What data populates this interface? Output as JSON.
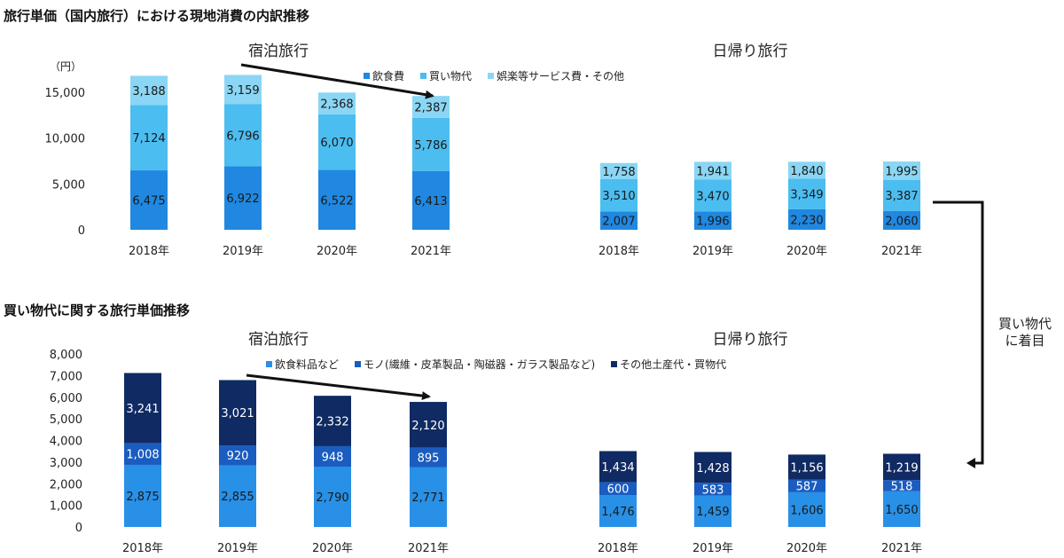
{
  "colors": {
    "food": "#2088e0",
    "shopping": "#4cbdf0",
    "entertainment": "#8ad6f4",
    "food_products": "#2890e6",
    "goods": "#1a5cc0",
    "other_souvenirs": "#102a63",
    "arrow": "#111111"
  },
  "top": {
    "section_title": "旅行単価（国内旅行）における現地消費の内訳推移",
    "unit": "（円）",
    "overnight_title": "宿泊旅行",
    "daytrip_title": "日帰り旅行",
    "legend": [
      "飲食費",
      "買い物代",
      "娯楽等サービス費・その他"
    ]
  },
  "bottom": {
    "section_title": "買い物代に関する旅行単価推移",
    "overnight_title": "宿泊旅行",
    "daytrip_title": "日帰り旅行",
    "legend": [
      "飲食料品など",
      "モノ(繊維・皮革製品・陶磁器・ガラス製品など)",
      "その他土産代・買物代"
    ]
  },
  "side_note": {
    "line1": "買い物代",
    "line2": "に着目"
  },
  "chart_data": [
    {
      "type": "bar",
      "stacked": true,
      "title": "宿泊旅行",
      "categories": [
        "2018年",
        "2019年",
        "2020年",
        "2021年"
      ],
      "series": [
        {
          "name": "飲食費",
          "values": [
            6475,
            6922,
            6522,
            6413
          ]
        },
        {
          "name": "買い物代",
          "values": [
            7124,
            6796,
            6070,
            5786
          ]
        },
        {
          "name": "娯楽等サービス費・その他",
          "values": [
            3188,
            3159,
            2368,
            2387
          ]
        }
      ],
      "labels": [
        [
          "6,475",
          "6,922",
          "6,522",
          "6,413"
        ],
        [
          "7,124",
          "6,796",
          "6,070",
          "5,786"
        ],
        [
          "3,188",
          "3,159",
          "2,368",
          "2,387"
        ]
      ],
      "yticks": [
        "0",
        "5,000",
        "10,000",
        "15,000"
      ],
      "ylim": [
        0,
        17000
      ]
    },
    {
      "type": "bar",
      "stacked": true,
      "title": "日帰り旅行",
      "categories": [
        "2018年",
        "2019年",
        "2020年",
        "2021年"
      ],
      "series": [
        {
          "name": "飲食費",
          "values": [
            2007,
            1996,
            2230,
            2060
          ]
        },
        {
          "name": "買い物代",
          "values": [
            3510,
            3470,
            3349,
            3387
          ]
        },
        {
          "name": "娯楽等サービス費・その他",
          "values": [
            1758,
            1941,
            1840,
            1995
          ]
        }
      ],
      "labels": [
        [
          "2,007",
          "1,996",
          "2,230",
          "2,060"
        ],
        [
          "3,510",
          "3,470",
          "3,349",
          "3,387"
        ],
        [
          "1,758",
          "1,941",
          "1,840",
          "1,995"
        ]
      ],
      "ylim": [
        0,
        17000
      ]
    },
    {
      "type": "bar",
      "stacked": true,
      "title": "宿泊旅行",
      "categories": [
        "2018年",
        "2019年",
        "2020年",
        "2021年"
      ],
      "series": [
        {
          "name": "飲食料品など",
          "values": [
            2875,
            2855,
            2790,
            2771
          ]
        },
        {
          "name": "モノ(繊維・皮革製品・陶磁器・ガラス製品など)",
          "values": [
            1008,
            920,
            948,
            895
          ]
        },
        {
          "name": "その他土産代・買物代",
          "values": [
            3241,
            3021,
            2332,
            2120
          ]
        }
      ],
      "labels": [
        [
          "2,875",
          "2,855",
          "2,790",
          "2,771"
        ],
        [
          "1,008",
          "920",
          "948",
          "895"
        ],
        [
          "3,241",
          "3,021",
          "2,332",
          "2,120"
        ]
      ],
      "yticks": [
        "0",
        "1,000",
        "2,000",
        "3,000",
        "4,000",
        "5,000",
        "6,000",
        "7,000",
        "8,000"
      ],
      "ylim": [
        0,
        8000
      ]
    },
    {
      "type": "bar",
      "stacked": true,
      "title": "日帰り旅行",
      "categories": [
        "2018年",
        "2019年",
        "2020年",
        "2021年"
      ],
      "series": [
        {
          "name": "飲食料品など",
          "values": [
            1476,
            1459,
            1606,
            1650
          ]
        },
        {
          "name": "モノ(繊維・皮革製品・陶磁器・ガラス製品など)",
          "values": [
            600,
            583,
            587,
            518
          ]
        },
        {
          "name": "その他土産代・買物代",
          "values": [
            1434,
            1428,
            1156,
            1219
          ]
        }
      ],
      "labels": [
        [
          "1,476",
          "1,459",
          "1,606",
          "1,650"
        ],
        [
          "600",
          "583",
          "587",
          "518"
        ],
        [
          "1,434",
          "1,428",
          "1,156",
          "1,219"
        ]
      ],
      "ylim": [
        0,
        8000
      ]
    }
  ]
}
